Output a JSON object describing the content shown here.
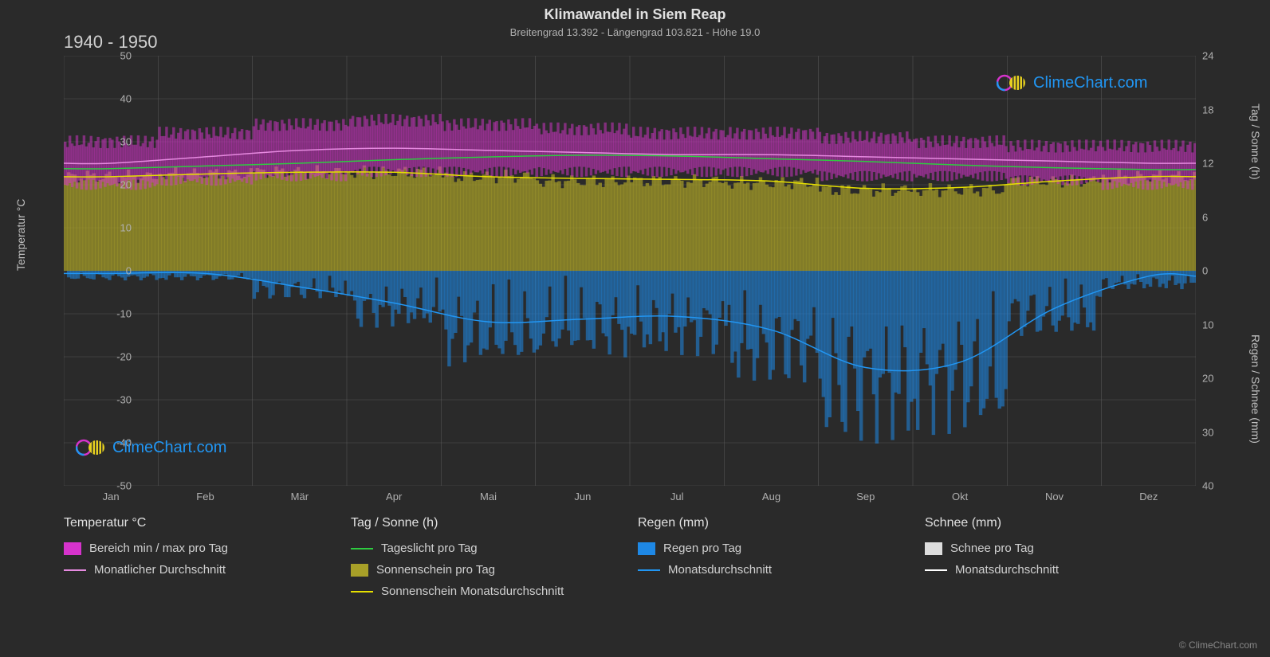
{
  "title": "Klimawandel in Siem Reap",
  "subtitle": "Breitengrad 13.392 - Längengrad 103.821 - Höhe 19.0",
  "period": "1940 - 1950",
  "brand": "ClimeChart.com",
  "copyright": "© ClimeChart.com",
  "chart": {
    "background_color": "#2a2a2a",
    "grid_color": "#555555",
    "grid_width": 1,
    "months": [
      "Jan",
      "Feb",
      "Mär",
      "Apr",
      "Mai",
      "Jun",
      "Jul",
      "Aug",
      "Sep",
      "Okt",
      "Nov",
      "Dez"
    ],
    "left_axis": {
      "label": "Temperatur °C",
      "min": -50,
      "max": 50,
      "step": 10,
      "ticks": [
        -50,
        -40,
        -30,
        -20,
        -10,
        0,
        10,
        20,
        30,
        40,
        50
      ]
    },
    "right_axis_top": {
      "label": "Tag / Sonne (h)",
      "min": 0,
      "max": 24,
      "step": 6,
      "ticks": [
        0,
        6,
        12,
        18,
        24
      ],
      "map_to_temp": [
        0,
        12.5,
        25,
        37.5,
        50
      ]
    },
    "right_axis_bottom": {
      "label": "Regen / Schnee (mm)",
      "min": 0,
      "max": 40,
      "step": 10,
      "ticks": [
        0,
        10,
        20,
        30,
        40
      ],
      "map_to_temp": [
        0,
        -12.5,
        -25,
        -37.5,
        -50
      ]
    },
    "series": {
      "temp_range": {
        "color": "#d633cc",
        "min": [
          20,
          21,
          22,
          23,
          23,
          23,
          23,
          23,
          22,
          22,
          21,
          20
        ],
        "max": [
          30,
          32,
          34,
          35,
          34,
          33,
          32,
          32,
          31,
          30,
          29,
          29
        ]
      },
      "temp_monthly_avg": {
        "color": "#e68ae0",
        "width": 1.5,
        "values": [
          25,
          26.5,
          28,
          28.5,
          28,
          27.5,
          27,
          27,
          26.5,
          26,
          25.5,
          25
        ]
      },
      "daylight": {
        "color": "#2ecc40",
        "width": 1.5,
        "values_h": [
          11.4,
          11.7,
          12.0,
          12.4,
          12.7,
          12.9,
          12.8,
          12.5,
          12.2,
          11.8,
          11.5,
          11.3
        ]
      },
      "sunshine_daily": {
        "color": "#b8b030",
        "fill_color": "#a8a028",
        "fill_opacity": 0.7,
        "values_h": [
          10.5,
          10.8,
          11,
          11,
          10.5,
          10,
          10,
          9.8,
          9,
          9,
          10,
          10.5
        ]
      },
      "sunshine_monthly_avg": {
        "color": "#e6e000",
        "width": 1.5,
        "values_h": [
          10.5,
          10.8,
          11,
          11,
          10.5,
          10.3,
          10.2,
          10,
          9.2,
          9.3,
          10,
          10.5
        ]
      },
      "rain_daily": {
        "color": "#1e88e5",
        "fill_opacity": 0.55,
        "values_mm": [
          1,
          1,
          3,
          6,
          10,
          9,
          9,
          12,
          18,
          17,
          7,
          2
        ]
      },
      "rain_monthly_avg": {
        "color": "#2196f3",
        "width": 1.5,
        "values_mm": [
          0.5,
          0.5,
          3,
          6,
          9.5,
          9,
          8.5,
          11,
          18,
          17,
          7,
          1
        ]
      },
      "snow_daily": {
        "color": "#dddddd",
        "values_mm": [
          0,
          0,
          0,
          0,
          0,
          0,
          0,
          0,
          0,
          0,
          0,
          0
        ]
      },
      "snow_monthly_avg": {
        "color": "#ffffff",
        "values_mm": [
          0,
          0,
          0,
          0,
          0,
          0,
          0,
          0,
          0,
          0,
          0,
          0
        ]
      }
    }
  },
  "legend": {
    "groups": [
      {
        "header": "Temperatur °C",
        "items": [
          {
            "type": "swatch",
            "color": "#d633cc",
            "label": "Bereich min / max pro Tag"
          },
          {
            "type": "line",
            "color": "#e68ae0",
            "label": "Monatlicher Durchschnitt"
          }
        ]
      },
      {
        "header": "Tag / Sonne (h)",
        "items": [
          {
            "type": "line",
            "color": "#2ecc40",
            "label": "Tageslicht pro Tag"
          },
          {
            "type": "swatch",
            "color": "#a8a028",
            "label": "Sonnenschein pro Tag"
          },
          {
            "type": "line",
            "color": "#e6e000",
            "label": "Sonnenschein Monatsdurchschnitt"
          }
        ]
      },
      {
        "header": "Regen (mm)",
        "items": [
          {
            "type": "swatch",
            "color": "#1e88e5",
            "label": "Regen pro Tag"
          },
          {
            "type": "line",
            "color": "#2196f3",
            "label": "Monatsdurchschnitt"
          }
        ]
      },
      {
        "header": "Schnee (mm)",
        "items": [
          {
            "type": "swatch",
            "color": "#dddddd",
            "label": "Schnee pro Tag"
          },
          {
            "type": "line",
            "color": "#ffffff",
            "label": "Monatsdurchschnitt"
          }
        ]
      }
    ]
  }
}
